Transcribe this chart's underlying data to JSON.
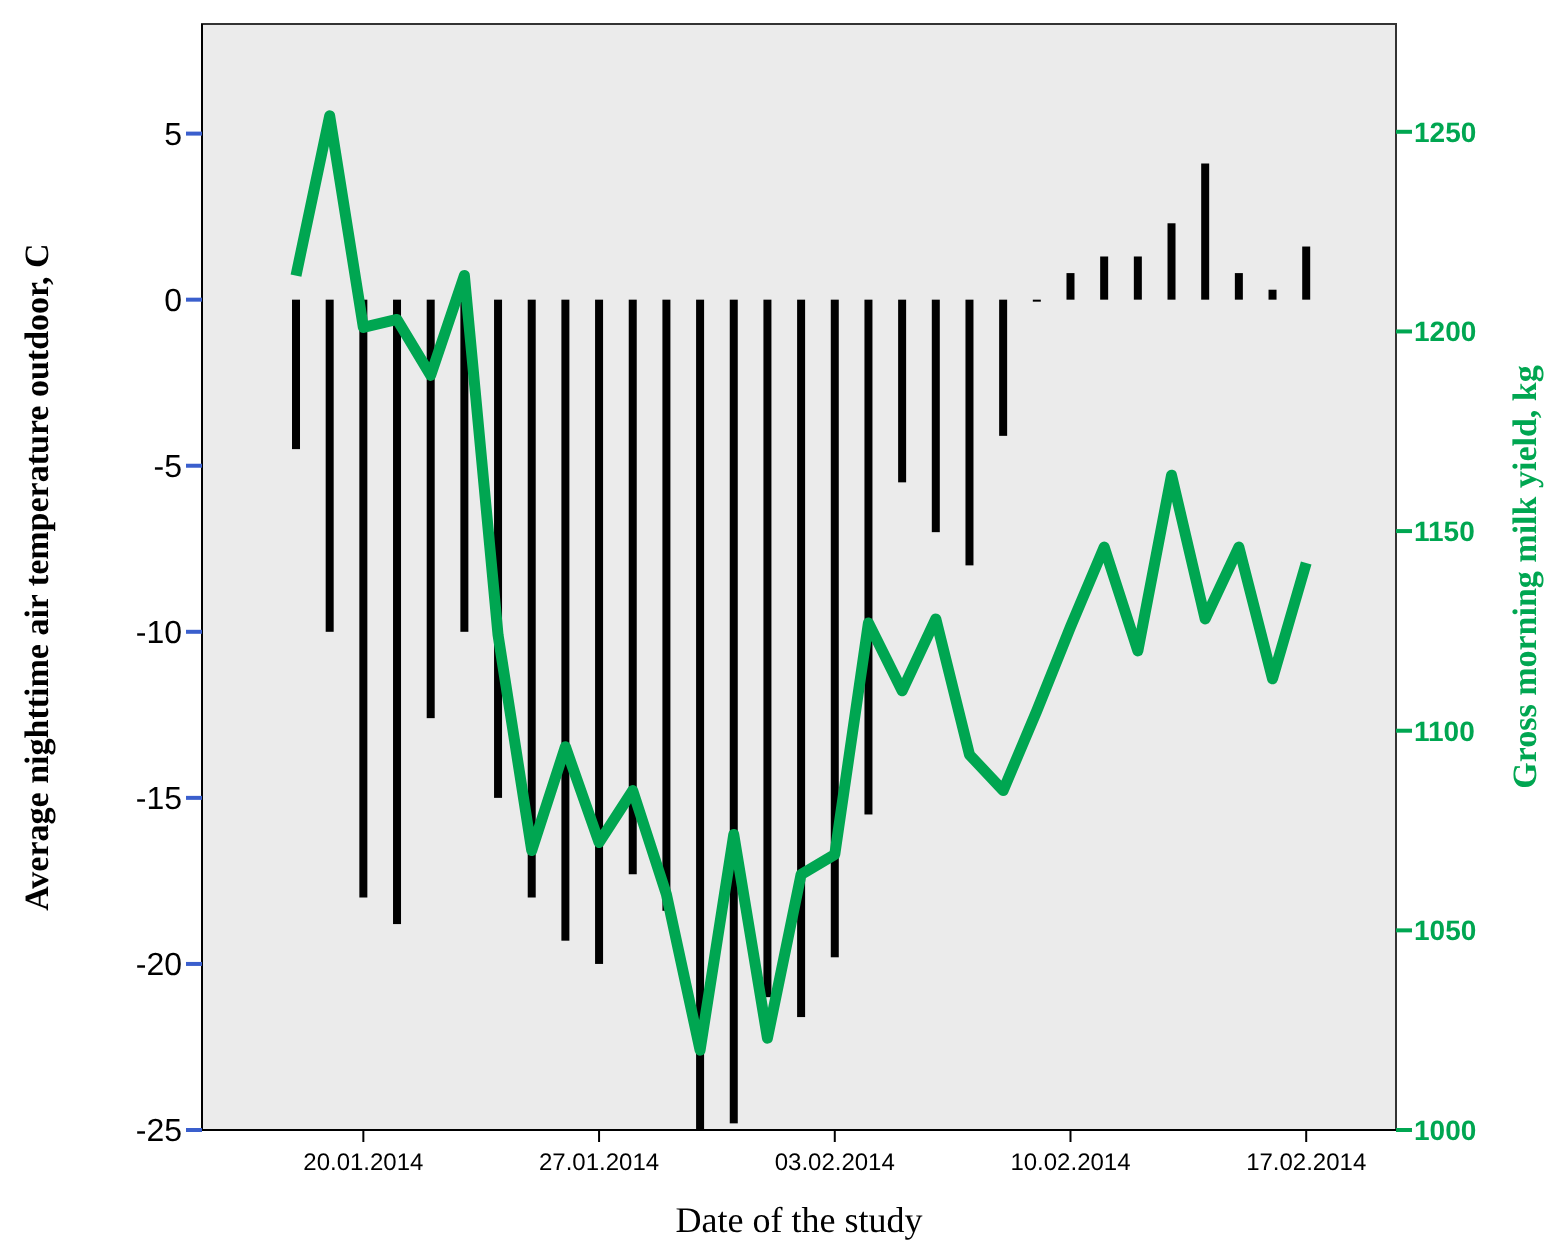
{
  "chart_data": {
    "type": "bar",
    "xlabel": "Date of the study",
    "ylabel": "Average  nighttime  air  temperature  outdoor, C",
    "y2label": "Gross  morning  milk  yield, kg",
    "x": [
      "2014-01-18",
      "2014-01-19",
      "2014-01-20",
      "2014-01-21",
      "2014-01-22",
      "2014-01-23",
      "2014-01-24",
      "2014-01-25",
      "2014-01-26",
      "2014-01-27",
      "2014-01-28",
      "2014-01-29",
      "2014-01-30",
      "2014-01-31",
      "2014-02-01",
      "2014-02-02",
      "2014-02-03",
      "2014-02-04",
      "2014-02-05",
      "2014-02-06",
      "2014-02-07",
      "2014-02-08",
      "2014-02-09",
      "2014-02-10",
      "2014-02-11",
      "2014-02-12",
      "2014-02-13",
      "2014-02-14",
      "2014-02-15",
      "2014-02-16",
      "2014-02-17"
    ],
    "xlim": [
      "2014-01-15T05:00",
      "2014-02-19T16:00"
    ],
    "xticks": [
      {
        "value": "2014-01-20",
        "label": "20.01.2014"
      },
      {
        "value": "2014-01-27",
        "label": "27.01.2014"
      },
      {
        "value": "2014-02-03",
        "label": "03.02.2014"
      },
      {
        "value": "2014-02-10",
        "label": "10.02.2014"
      },
      {
        "value": "2014-02-17",
        "label": "17.02.2014"
      }
    ],
    "ylim": [
      -25,
      8.3
    ],
    "yticks": [
      -25,
      -20,
      -15,
      -10,
      -5,
      0,
      5
    ],
    "y2lim": [
      1000,
      1277
    ],
    "y2ticks": [
      1000,
      1050,
      1100,
      1150,
      1200,
      1250
    ],
    "series": [
      {
        "color": "#000000",
        "values": [
          -4.5,
          -10.0,
          -18.0,
          -18.8,
          -12.6,
          -10.0,
          -15.0,
          -18.0,
          -19.3,
          -20.0,
          -17.3,
          -18.4,
          -25.0,
          -24.8,
          -21.0,
          -21.6,
          -19.8,
          -15.5,
          -5.5,
          -7.0,
          -8.0,
          -4.1,
          0,
          0.8,
          1.3,
          1.3,
          2.3,
          4.1,
          0.8,
          0.3,
          1.6
        ]
      },
      {
        "type": "line",
        "axis": "y2",
        "color": "#00a651",
        "values": [
          1214,
          1254,
          1201,
          1203,
          1189,
          1214,
          1124,
          1070,
          1096,
          1072,
          1085,
          1059,
          1020,
          1074,
          1023,
          1064,
          1069,
          1127,
          1110,
          1128,
          1094,
          1085,
          1105,
          1126,
          1146,
          1120,
          1164,
          1128,
          1146,
          1113,
          1142
        ]
      }
    ]
  }
}
